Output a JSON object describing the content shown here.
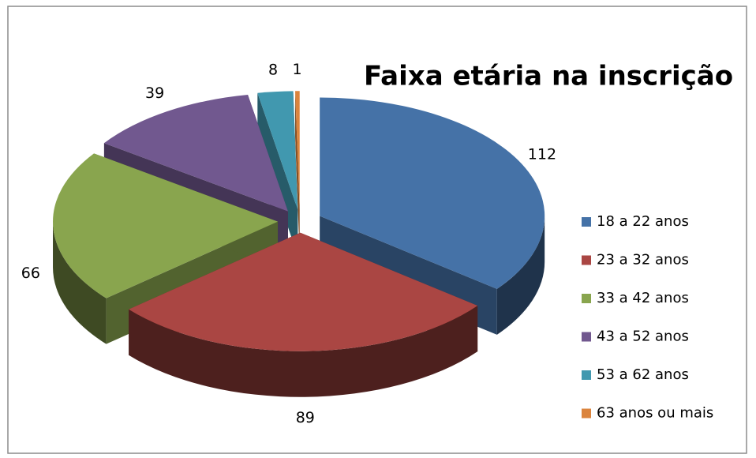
{
  "chart_data": {
    "type": "pie3d",
    "title": "Faixa etária na inscrição",
    "categories": [
      "18 a 22 anos",
      "23 a 32 anos",
      "33 a 42 anos",
      "43 a 52 anos",
      "53 a 62 anos",
      "63 anos ou mais"
    ],
    "values": [
      112,
      89,
      66,
      39,
      8,
      1
    ],
    "colors": [
      "#4572a7",
      "#aa4643",
      "#89a54e",
      "#71588f",
      "#4198af",
      "#db843d"
    ],
    "legend": "right"
  }
}
